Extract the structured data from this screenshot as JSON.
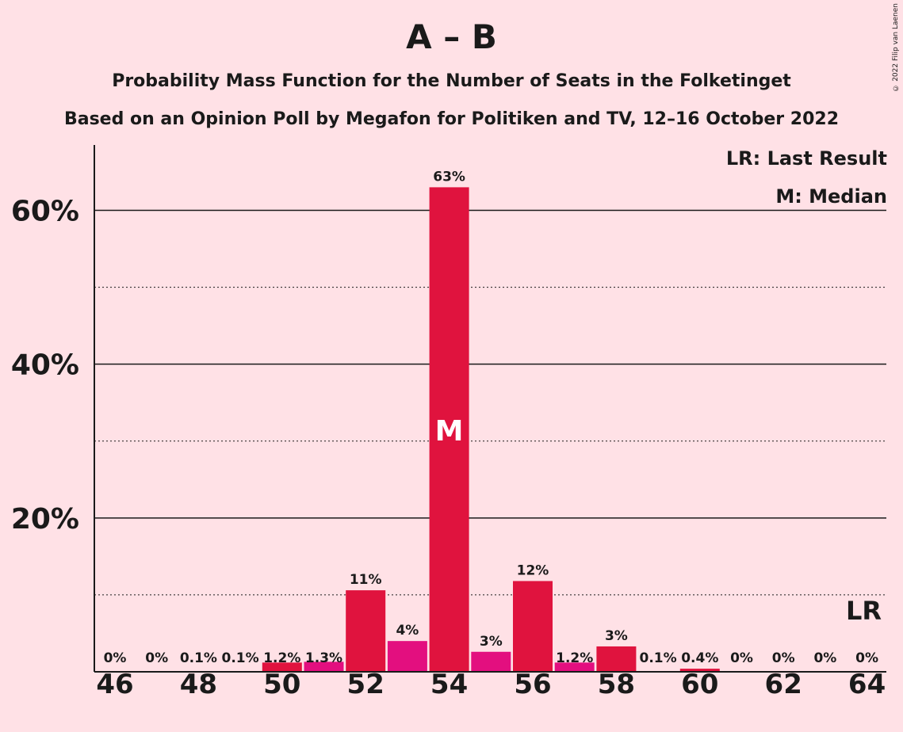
{
  "copyright": "© 2022 Filip van Laenen",
  "chart_data": {
    "type": "bar",
    "title": "A – B",
    "subtitle": "Probability Mass Function for the Number of Seats in the Folketinget",
    "subtitle2": "Based on an Opinion Poll by Megafon for Politiken and TV, 12–16 October 2022",
    "x": [
      46,
      47,
      48,
      49,
      50,
      51,
      52,
      53,
      54,
      55,
      56,
      57,
      58,
      59,
      60,
      61,
      62,
      63,
      64
    ],
    "values": [
      0,
      0,
      0.1,
      0.1,
      1.2,
      1.3,
      10.6,
      4.0,
      63.0,
      2.6,
      11.8,
      1.2,
      3.3,
      0.1,
      0.4,
      0,
      0,
      0,
      0
    ],
    "value_labels": [
      "0%",
      "0%",
      "0.1%",
      "0.1%",
      "1.2%",
      "1.3%",
      "11%",
      "4%",
      "63%",
      "3%",
      "12%",
      "1.2%",
      "3%",
      "0.1%",
      "0.4%",
      "0%",
      "0%",
      "0%",
      "0%"
    ],
    "bar_colors": [
      "#E0133E",
      "#E0133E",
      "#E0133E",
      "#E0133E",
      "#E0133E",
      "#E30F7F",
      "#E0133E",
      "#E30F7F",
      "#E0133E",
      "#E30F7F",
      "#E0133E",
      "#E30F7F",
      "#E0133E",
      "#E0133E",
      "#E0133E",
      "#E0133E",
      "#E0133E",
      "#E0133E",
      "#E0133E"
    ],
    "x_tick_labels": [
      "46",
      "48",
      "50",
      "52",
      "54",
      "56",
      "58",
      "60",
      "62",
      "64"
    ],
    "y_ticks": [
      20,
      40,
      60
    ],
    "y_tick_labels": [
      "20%",
      "40%",
      "60%"
    ],
    "y_minor_gridlines": [
      10,
      30,
      50
    ],
    "ylim": [
      0,
      68.5
    ],
    "median_seat": 54,
    "median_marker": "M",
    "last_result_seat": 64,
    "last_result_marker": "LR",
    "legend": [
      "LR: Last Result",
      "M: Median"
    ],
    "legend_position": "top-right",
    "background": "#FFE1E6",
    "grid": true
  }
}
